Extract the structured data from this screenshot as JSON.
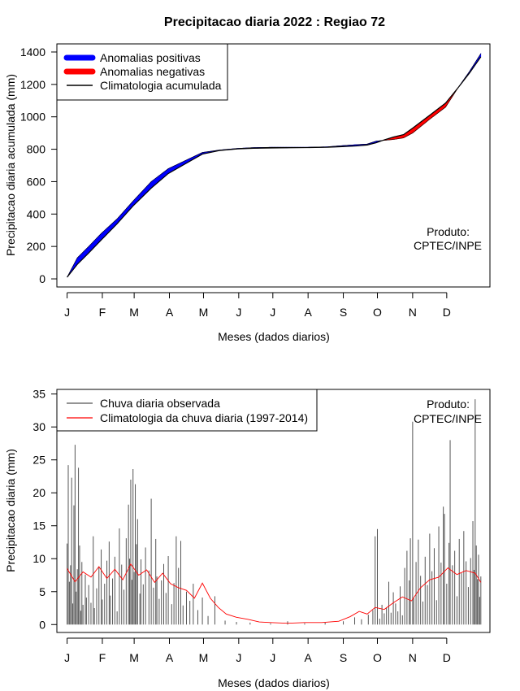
{
  "title": "Precipitacao diaria 2022 : Regiao 72",
  "chart_data": [
    {
      "type": "area",
      "ylabel": "Precipitacao diaria acumulada (mm)",
      "xlabel": "Meses (dados diarios)",
      "x_ticklabels": [
        "J",
        "F",
        "M",
        "A",
        "M",
        "J",
        "J",
        "A",
        "S",
        "O",
        "N",
        "D"
      ],
      "y_ticks": [
        0,
        200,
        400,
        600,
        800,
        1000,
        1200,
        1400
      ],
      "ylim": [
        -50,
        1450
      ],
      "xlim_days": [
        -8,
        373
      ],
      "grid": false,
      "legend_position": "top-left",
      "legend": [
        {
          "label": "Anomalias positivas",
          "color": "#0000ff",
          "style": "thick"
        },
        {
          "label": "Anomalias negativas",
          "color": "#ff0000",
          "style": "thick"
        },
        {
          "label": "Climatologia acumulada",
          "color": "#000000",
          "style": "thin"
        }
      ],
      "annotation": [
        "Produto:",
        "CPTEC/INPE"
      ],
      "observed_cumulative": {
        "day": [
          1,
          10,
          20,
          31,
          45,
          59,
          75,
          90,
          105,
          120,
          135,
          151,
          165,
          181,
          195,
          212,
          230,
          243,
          255,
          265,
          273,
          280,
          288,
          297,
          305,
          320,
          334,
          345,
          355,
          365
        ],
        "value": [
          10,
          130,
          200,
          280,
          370,
          480,
          600,
          680,
          730,
          780,
          795,
          805,
          810,
          812,
          812,
          812,
          815,
          822,
          828,
          832,
          850,
          855,
          860,
          870,
          900,
          985,
          1060,
          1180,
          1280,
          1390
        ]
      },
      "climatology_cumulative": {
        "day": [
          1,
          10,
          20,
          31,
          45,
          59,
          75,
          90,
          105,
          120,
          135,
          151,
          165,
          181,
          195,
          212,
          230,
          243,
          255,
          265,
          273,
          280,
          288,
          297,
          305,
          320,
          334,
          345,
          355,
          365
        ],
        "value": [
          10,
          90,
          160,
          240,
          340,
          450,
          560,
          650,
          710,
          770,
          792,
          802,
          806,
          808,
          809,
          810,
          812,
          816,
          820,
          826,
          840,
          858,
          875,
          890,
          930,
          1010,
          1085,
          1180,
          1270,
          1370
        ]
      }
    },
    {
      "type": "bar",
      "ylabel": "Precipitacao diaria (mm)",
      "xlabel": "Meses (dados diarios)",
      "x_ticklabels": [
        "J",
        "F",
        "M",
        "A",
        "M",
        "J",
        "J",
        "A",
        "S",
        "O",
        "N",
        "D"
      ],
      "y_ticks": [
        0,
        5,
        10,
        15,
        20,
        25,
        30,
        35
      ],
      "ylim": [
        -1.2,
        35.7
      ],
      "xlim_days": [
        -8,
        373
      ],
      "grid": false,
      "legend_position": "top-left",
      "legend": [
        {
          "label": "Chuva diaria observada",
          "color": "#555555",
          "style": "thin"
        },
        {
          "label": "Climatologia da chuva diaria (1997-2014)",
          "color": "#ff0000",
          "style": "thin"
        }
      ],
      "annotation": [
        "Produto:",
        "CPTEC/INPE"
      ],
      "observed_daily": [
        {
          "day": 1,
          "value": 12.3
        },
        {
          "day": 2,
          "value": 24.2
        },
        {
          "day": 3,
          "value": 6.5
        },
        {
          "day": 4,
          "value": 9.0
        },
        {
          "day": 5,
          "value": 22.3
        },
        {
          "day": 6,
          "value": 3.2
        },
        {
          "day": 7,
          "value": 18.1
        },
        {
          "day": 8,
          "value": 27.3
        },
        {
          "day": 9,
          "value": 5.0
        },
        {
          "day": 10,
          "value": 8.4
        },
        {
          "day": 11,
          "value": 23.8
        },
        {
          "day": 12,
          "value": 12.0
        },
        {
          "day": 13,
          "value": 2.1
        },
        {
          "day": 14,
          "value": 9.5
        },
        {
          "day": 15,
          "value": 3.0
        },
        {
          "day": 17,
          "value": 7.6
        },
        {
          "day": 18,
          "value": 4.1
        },
        {
          "day": 20,
          "value": 6.0
        },
        {
          "day": 22,
          "value": 3.3
        },
        {
          "day": 24,
          "value": 13.4
        },
        {
          "day": 25,
          "value": 2.5
        },
        {
          "day": 27,
          "value": 5.5
        },
        {
          "day": 29,
          "value": 8.8
        },
        {
          "day": 31,
          "value": 11.4
        },
        {
          "day": 32,
          "value": 3.8
        },
        {
          "day": 34,
          "value": 6.2
        },
        {
          "day": 36,
          "value": 9.7
        },
        {
          "day": 38,
          "value": 12.6
        },
        {
          "day": 39,
          "value": 4.4
        },
        {
          "day": 41,
          "value": 7.0
        },
        {
          "day": 43,
          "value": 10.3
        },
        {
          "day": 45,
          "value": 2.0
        },
        {
          "day": 47,
          "value": 14.6
        },
        {
          "day": 49,
          "value": 9.1
        },
        {
          "day": 51,
          "value": 5.3
        },
        {
          "day": 53,
          "value": 13.1
        },
        {
          "day": 55,
          "value": 18.2
        },
        {
          "day": 56,
          "value": 10.0
        },
        {
          "day": 57,
          "value": 22.0
        },
        {
          "day": 58,
          "value": 6.8
        },
        {
          "day": 59,
          "value": 23.6
        },
        {
          "day": 60,
          "value": 8.0
        },
        {
          "day": 61,
          "value": 21.3
        },
        {
          "day": 62,
          "value": 12.2
        },
        {
          "day": 63,
          "value": 16.0
        },
        {
          "day": 65,
          "value": 4.7
        },
        {
          "day": 66,
          "value": 9.9
        },
        {
          "day": 68,
          "value": 6.1
        },
        {
          "day": 70,
          "value": 11.7
        },
        {
          "day": 73,
          "value": 8.2
        },
        {
          "day": 75,
          "value": 19.1
        },
        {
          "day": 77,
          "value": 5.6
        },
        {
          "day": 79,
          "value": 13.0
        },
        {
          "day": 80,
          "value": 7.3
        },
        {
          "day": 82,
          "value": 3.9
        },
        {
          "day": 84,
          "value": 6.7
        },
        {
          "day": 86,
          "value": 9.2
        },
        {
          "day": 88,
          "value": 4.8
        },
        {
          "day": 90,
          "value": 10.4
        },
        {
          "day": 93,
          "value": 3.1
        },
        {
          "day": 95,
          "value": 6.3
        },
        {
          "day": 97,
          "value": 13.4
        },
        {
          "day": 99,
          "value": 8.6
        },
        {
          "day": 101,
          "value": 12.7
        },
        {
          "day": 103,
          "value": 2.9
        },
        {
          "day": 106,
          "value": 5.0
        },
        {
          "day": 109,
          "value": 3.6
        },
        {
          "day": 112,
          "value": 6.2
        },
        {
          "day": 116,
          "value": 2.2
        },
        {
          "day": 120,
          "value": 4.1
        },
        {
          "day": 125,
          "value": 1.3
        },
        {
          "day": 131,
          "value": 4.3
        },
        {
          "day": 140,
          "value": 0.6
        },
        {
          "day": 150,
          "value": 0.4
        },
        {
          "day": 162,
          "value": 0.3
        },
        {
          "day": 180,
          "value": 0.2
        },
        {
          "day": 195,
          "value": 0.5
        },
        {
          "day": 210,
          "value": 0.2
        },
        {
          "day": 228,
          "value": 0.3
        },
        {
          "day": 244,
          "value": 0.5
        },
        {
          "day": 254,
          "value": 1.1
        },
        {
          "day": 260,
          "value": 0.8
        },
        {
          "day": 266,
          "value": 1.5
        },
        {
          "day": 270,
          "value": 2.2
        },
        {
          "day": 272,
          "value": 13.4
        },
        {
          "day": 274,
          "value": 14.5
        },
        {
          "day": 276,
          "value": 0.9
        },
        {
          "day": 278,
          "value": 3.0
        },
        {
          "day": 280,
          "value": 1.7
        },
        {
          "day": 282,
          "value": 2.6
        },
        {
          "day": 284,
          "value": 6.5
        },
        {
          "day": 286,
          "value": 1.8
        },
        {
          "day": 288,
          "value": 4.9
        },
        {
          "day": 290,
          "value": 3.2
        },
        {
          "day": 292,
          "value": 2.0
        },
        {
          "day": 294,
          "value": 5.8
        },
        {
          "day": 296,
          "value": 1.4
        },
        {
          "day": 298,
          "value": 8.6
        },
        {
          "day": 300,
          "value": 11.2
        },
        {
          "day": 302,
          "value": 6.7
        },
        {
          "day": 303,
          "value": 13.1
        },
        {
          "day": 305,
          "value": 30.8
        },
        {
          "day": 306,
          "value": 4.0
        },
        {
          "day": 308,
          "value": 9.5
        },
        {
          "day": 310,
          "value": 12.9
        },
        {
          "day": 312,
          "value": 7.4
        },
        {
          "day": 314,
          "value": 3.5
        },
        {
          "day": 316,
          "value": 10.3
        },
        {
          "day": 318,
          "value": 6.0
        },
        {
          "day": 320,
          "value": 13.8
        },
        {
          "day": 322,
          "value": 8.1
        },
        {
          "day": 324,
          "value": 11.6
        },
        {
          "day": 326,
          "value": 3.7
        },
        {
          "day": 328,
          "value": 14.9
        },
        {
          "day": 330,
          "value": 9.4
        },
        {
          "day": 332,
          "value": 17.9
        },
        {
          "day": 333,
          "value": 16.8
        },
        {
          "day": 335,
          "value": 6.2
        },
        {
          "day": 337,
          "value": 12.4
        },
        {
          "day": 338,
          "value": 28.0
        },
        {
          "day": 340,
          "value": 9.0
        },
        {
          "day": 342,
          "value": 11.2
        },
        {
          "day": 344,
          "value": 4.3
        },
        {
          "day": 346,
          "value": 13.0
        },
        {
          "day": 348,
          "value": 7.8
        },
        {
          "day": 350,
          "value": 14.2
        },
        {
          "day": 352,
          "value": 9.6
        },
        {
          "day": 354,
          "value": 5.7
        },
        {
          "day": 356,
          "value": 10.1
        },
        {
          "day": 358,
          "value": 15.7
        },
        {
          "day": 359,
          "value": 8.3
        },
        {
          "day": 360,
          "value": 34.2
        },
        {
          "day": 361,
          "value": 12.0
        },
        {
          "day": 362,
          "value": 6.9
        },
        {
          "day": 363,
          "value": 10.6
        },
        {
          "day": 364,
          "value": 4.2
        },
        {
          "day": 365,
          "value": 7.3
        }
      ],
      "climatology_daily": {
        "day": [
          1,
          8,
          15,
          22,
          29,
          36,
          43,
          50,
          57,
          64,
          71,
          78,
          85,
          92,
          99,
          106,
          113,
          120,
          127,
          134,
          141,
          150,
          160,
          170,
          180,
          195,
          210,
          225,
          240,
          250,
          258,
          265,
          272,
          280,
          288,
          296,
          304,
          312,
          320,
          328,
          336,
          344,
          352,
          360,
          365
        ],
        "value": [
          8.5,
          6.5,
          8.0,
          7.2,
          8.8,
          7.0,
          8.4,
          6.8,
          9.2,
          7.5,
          8.3,
          6.4,
          7.8,
          6.2,
          5.6,
          5.2,
          4.0,
          6.3,
          4.0,
          2.6,
          1.6,
          1.1,
          0.8,
          0.4,
          0.3,
          0.2,
          0.3,
          0.3,
          0.5,
          1.2,
          2.0,
          1.6,
          2.6,
          2.3,
          3.3,
          4.2,
          3.6,
          5.6,
          6.8,
          7.2,
          8.6,
          7.6,
          8.2,
          7.8,
          6.4
        ]
      }
    }
  ]
}
